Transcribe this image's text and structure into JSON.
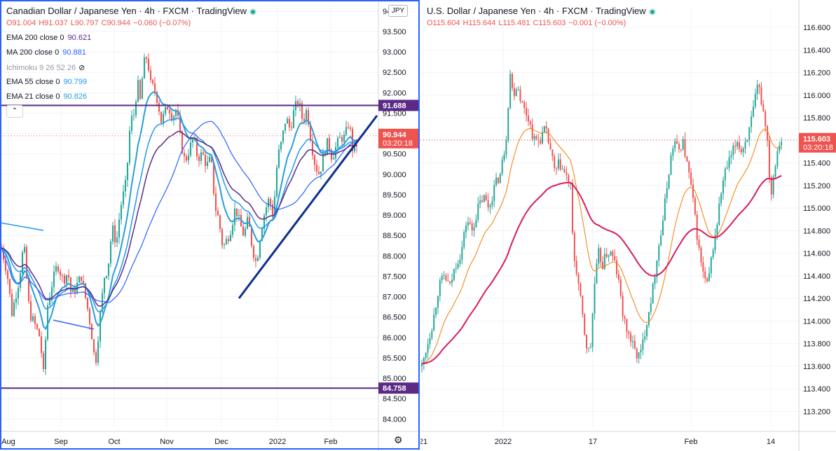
{
  "chart_data": [
    {
      "type": "candlestick",
      "title": "Canadian Dollar / Japanese Yen · 4h · FXCM · TradingView",
      "currency": "JPY",
      "ohlc": {
        "open": "O91.004",
        "high": "H91.037",
        "low": "L90.797",
        "close": "C90.944",
        "change": "−0.060 (−0.07%)"
      },
      "indicators": [
        {
          "label": "EMA 200 close 0",
          "value": "90.621",
          "color": "#5b2a86"
        },
        {
          "label": "MA 200 close 0",
          "value": "90.881",
          "color": "#2962ff"
        },
        {
          "label": "Ichimoku 9 26 52 26",
          "value": "",
          "color": "#9598a1",
          "hidden": true
        },
        {
          "label": "EMA 55 close 0",
          "value": "90.799",
          "color": "#2196f3"
        },
        {
          "label": "EMA 21 close 0",
          "value": "90.826",
          "color": "#26a0da"
        }
      ],
      "y_ticks": [
        "94.000",
        "93.500",
        "93.000",
        "92.500",
        "92.000",
        "91.500",
        "91.000",
        "90.500",
        "90.000",
        "89.500",
        "89.000",
        "88.500",
        "88.000",
        "87.500",
        "87.000",
        "86.500",
        "86.000",
        "85.500",
        "85.000",
        "84.500",
        "84.000"
      ],
      "x_ticks": [
        "Aug",
        "Sep",
        "Oct",
        "Nov",
        "Dec",
        "2022",
        "Feb"
      ],
      "ylim": [
        83.8,
        94.1
      ],
      "last_price": "90.944",
      "countdown": "03:20:18",
      "horizontal_levels": [
        {
          "label": "91.688",
          "value": 91.688,
          "color": "#5b2a86"
        },
        {
          "label": "84.758",
          "value": 84.758,
          "color": "#5b2a86"
        }
      ],
      "path": [
        [
          0,
          88.2
        ],
        [
          8,
          87.6
        ],
        [
          15,
          86.6
        ],
        [
          25,
          87.4
        ],
        [
          32,
          88.3
        ],
        [
          40,
          86.6
        ],
        [
          48,
          86.3
        ],
        [
          55,
          86.0
        ],
        [
          60,
          85.1
        ],
        [
          66,
          86.8
        ],
        [
          72,
          87.3
        ],
        [
          80,
          87.8
        ],
        [
          88,
          87.4
        ],
        [
          95,
          87.6
        ],
        [
          100,
          87.0
        ],
        [
          108,
          87.3
        ],
        [
          114,
          87.5
        ],
        [
          122,
          86.8
        ],
        [
          128,
          86.2
        ],
        [
          134,
          85.3
        ],
        [
          140,
          86.4
        ],
        [
          147,
          87.5
        ],
        [
          152,
          87.7
        ],
        [
          158,
          88.7
        ],
        [
          164,
          88.3
        ],
        [
          170,
          89.2
        ],
        [
          178,
          89.8
        ],
        [
          184,
          91.3
        ],
        [
          190,
          91.5
        ],
        [
          194,
          92.3
        ],
        [
          198,
          91.8
        ],
        [
          203,
          92.7
        ],
        [
          208,
          92.9
        ],
        [
          213,
          92.2
        ],
        [
          218,
          92.1
        ],
        [
          223,
          91.8
        ],
        [
          228,
          91.3
        ],
        [
          233,
          91.5
        ],
        [
          238,
          91.7
        ],
        [
          244,
          91.4
        ],
        [
          250,
          91.6
        ],
        [
          256,
          90.8
        ],
        [
          262,
          90.3
        ],
        [
          268,
          90.6
        ],
        [
          274,
          90.9
        ],
        [
          280,
          90.4
        ],
        [
          287,
          90.5
        ],
        [
          293,
          90.2
        ],
        [
          299,
          90.4
        ],
        [
          305,
          89.2
        ],
        [
          310,
          88.9
        ],
        [
          316,
          88.2
        ],
        [
          322,
          88.4
        ],
        [
          328,
          88.7
        ],
        [
          334,
          89.2
        ],
        [
          340,
          88.8
        ],
        [
          346,
          88.5
        ],
        [
          352,
          88.9
        ],
        [
          358,
          88.2
        ],
        [
          364,
          87.8
        ],
        [
          370,
          88.6
        ],
        [
          376,
          89.1
        ],
        [
          382,
          89.4
        ],
        [
          388,
          89.0
        ],
        [
          394,
          90.4
        ],
        [
          400,
          90.8
        ],
        [
          406,
          91.4
        ],
        [
          412,
          91.1
        ],
        [
          418,
          91.6
        ],
        [
          424,
          91.8
        ],
        [
          430,
          91.3
        ],
        [
          436,
          91.6
        ],
        [
          442,
          90.8
        ],
        [
          448,
          90.2
        ],
        [
          454,
          90.0
        ],
        [
          460,
          90.5
        ],
        [
          466,
          90.8
        ],
        [
          472,
          90.4
        ],
        [
          478,
          90.7
        ],
        [
          484,
          90.9
        ],
        [
          490,
          90.9
        ],
        [
          496,
          91.3
        ],
        [
          502,
          90.5
        ],
        [
          508,
          90.8
        ],
        [
          512,
          90.9
        ]
      ]
    },
    {
      "type": "candlestick",
      "title": "U.S. Dollar / Japanese Yen · 4h · FXCM · TradingView",
      "ohlc": {
        "open": "O115.604",
        "high": "H115.644",
        "low": "L115.481",
        "close": "C115.603",
        "change": "−0.001 (−0.00%)"
      },
      "y_ticks": [
        "116.600",
        "116.400",
        "116.200",
        "116.000",
        "115.800",
        "115.600",
        "115.400",
        "115.200",
        "115.000",
        "114.800",
        "114.600",
        "114.400",
        "114.200",
        "114.000",
        "113.800",
        "113.600",
        "113.400",
        "113.200"
      ],
      "x_ticks": [
        "21",
        "2022",
        "17",
        "Feb",
        "14"
      ],
      "ylim": [
        113.06,
        116.78
      ],
      "last_price": "115.603",
      "countdown": "03:20:18",
      "path": [
        [
          0,
          113.6
        ],
        [
          8,
          113.8
        ],
        [
          16,
          114.0
        ],
        [
          24,
          114.3
        ],
        [
          32,
          114.4
        ],
        [
          40,
          114.3
        ],
        [
          48,
          114.5
        ],
        [
          56,
          114.6
        ],
        [
          64,
          114.9
        ],
        [
          72,
          114.8
        ],
        [
          80,
          115.0
        ],
        [
          88,
          115.1
        ],
        [
          96,
          115.0
        ],
        [
          104,
          115.2
        ],
        [
          112,
          115.3
        ],
        [
          120,
          115.6
        ],
        [
          126,
          116.2
        ],
        [
          130,
          116.0
        ],
        [
          136,
          116.1
        ],
        [
          144,
          115.9
        ],
        [
          152,
          115.8
        ],
        [
          160,
          115.6
        ],
        [
          168,
          115.6
        ],
        [
          176,
          115.7
        ],
        [
          184,
          115.5
        ],
        [
          190,
          115.3
        ],
        [
          196,
          115.4
        ],
        [
          204,
          115.3
        ],
        [
          212,
          115.2
        ],
        [
          216,
          114.6
        ],
        [
          222,
          114.4
        ],
        [
          228,
          114.1
        ],
        [
          234,
          113.8
        ],
        [
          240,
          113.7
        ],
        [
          246,
          114.3
        ],
        [
          252,
          114.6
        ],
        [
          258,
          114.5
        ],
        [
          264,
          114.6
        ],
        [
          270,
          114.6
        ],
        [
          276,
          114.5
        ],
        [
          282,
          114.3
        ],
        [
          288,
          114.0
        ],
        [
          294,
          113.9
        ],
        [
          300,
          113.8
        ],
        [
          306,
          113.7
        ],
        [
          312,
          113.7
        ],
        [
          318,
          113.9
        ],
        [
          324,
          114.1
        ],
        [
          330,
          114.3
        ],
        [
          336,
          114.6
        ],
        [
          342,
          114.8
        ],
        [
          348,
          115.1
        ],
        [
          354,
          115.4
        ],
        [
          360,
          115.6
        ],
        [
          366,
          115.5
        ],
        [
          372,
          115.6
        ],
        [
          378,
          115.4
        ],
        [
          384,
          115.2
        ],
        [
          390,
          114.9
        ],
        [
          396,
          114.6
        ],
        [
          402,
          114.4
        ],
        [
          408,
          114.3
        ],
        [
          414,
          114.6
        ],
        [
          420,
          114.8
        ],
        [
          426,
          115.1
        ],
        [
          432,
          115.3
        ],
        [
          438,
          115.4
        ],
        [
          444,
          115.5
        ],
        [
          450,
          115.6
        ],
        [
          456,
          115.5
        ],
        [
          462,
          115.6
        ],
        [
          468,
          115.7
        ],
        [
          474,
          115.9
        ],
        [
          480,
          116.1
        ],
        [
          486,
          115.9
        ],
        [
          492,
          115.7
        ],
        [
          498,
          115.1
        ],
        [
          504,
          115.4
        ],
        [
          510,
          115.6
        ],
        [
          516,
          115.6
        ]
      ]
    }
  ]
}
